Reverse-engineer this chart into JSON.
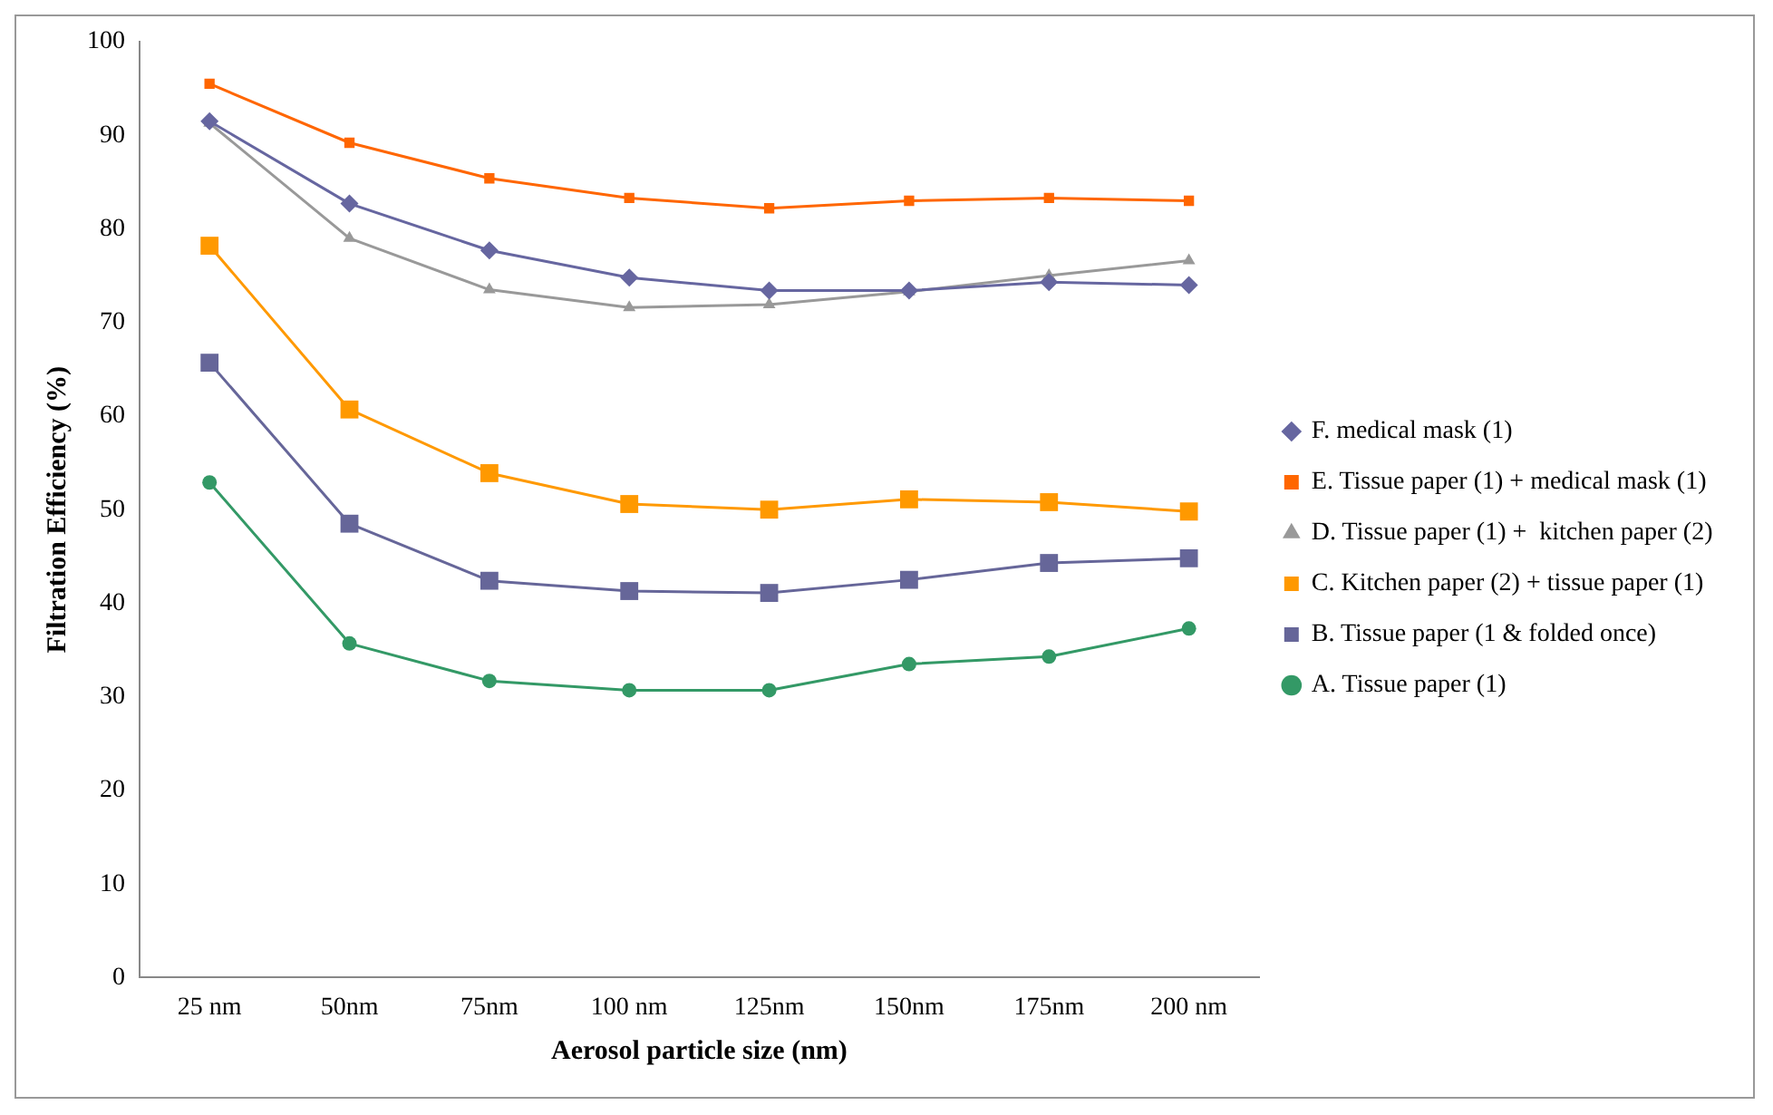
{
  "chart_data": {
    "type": "line",
    "xlabel": "Aerosol particle size (nm)",
    "ylabel": "Filtration Efficiency (%)",
    "categories": [
      "25 nm",
      "50nm",
      "75nm",
      "100 nm",
      "125nm",
      "150nm",
      "175nm",
      "200 nm"
    ],
    "ylim": [
      0,
      100
    ],
    "yticks": [
      0,
      10,
      20,
      30,
      40,
      50,
      60,
      70,
      80,
      90,
      100
    ],
    "grid": false,
    "legend": "right",
    "line_style": "solid",
    "series": [
      {
        "name": "F. medical mask (1)",
        "color": "#6666a0",
        "marker": "diamond",
        "values": [
          91.5,
          82.7,
          77.7,
          74.8,
          73.4,
          73.4,
          74.3,
          74.0
        ]
      },
      {
        "name": "E. Tissue paper (1) + medical mask (1)",
        "color": "#ff6600",
        "marker": "square",
        "values": [
          95.5,
          89.2,
          85.4,
          83.3,
          82.2,
          83.0,
          83.3,
          83.0
        ]
      },
      {
        "name": "D. Tissue paper (1) +  kitchen paper (2)",
        "color": "#999999",
        "marker": "triangle",
        "values": [
          91.3,
          79.0,
          73.5,
          71.6,
          71.9,
          73.3,
          75.0,
          76.6
        ]
      },
      {
        "name": "C. Kitchen paper (2) + tissue paper (1)",
        "color": "#ff9900",
        "marker": "square",
        "values": [
          78.2,
          60.7,
          53.9,
          50.6,
          50.0,
          51.1,
          50.8,
          49.8
        ]
      },
      {
        "name": "B. Tissue paper (1 & folded once)",
        "color": "#666699",
        "marker": "square",
        "values": [
          65.7,
          48.5,
          42.4,
          41.3,
          41.1,
          42.5,
          44.3,
          44.8
        ]
      },
      {
        "name": "A. Tissue paper (1)",
        "color": "#339966",
        "marker": "circle",
        "values": [
          52.9,
          35.7,
          31.7,
          30.7,
          30.7,
          33.5,
          34.3,
          37.3
        ]
      }
    ]
  }
}
